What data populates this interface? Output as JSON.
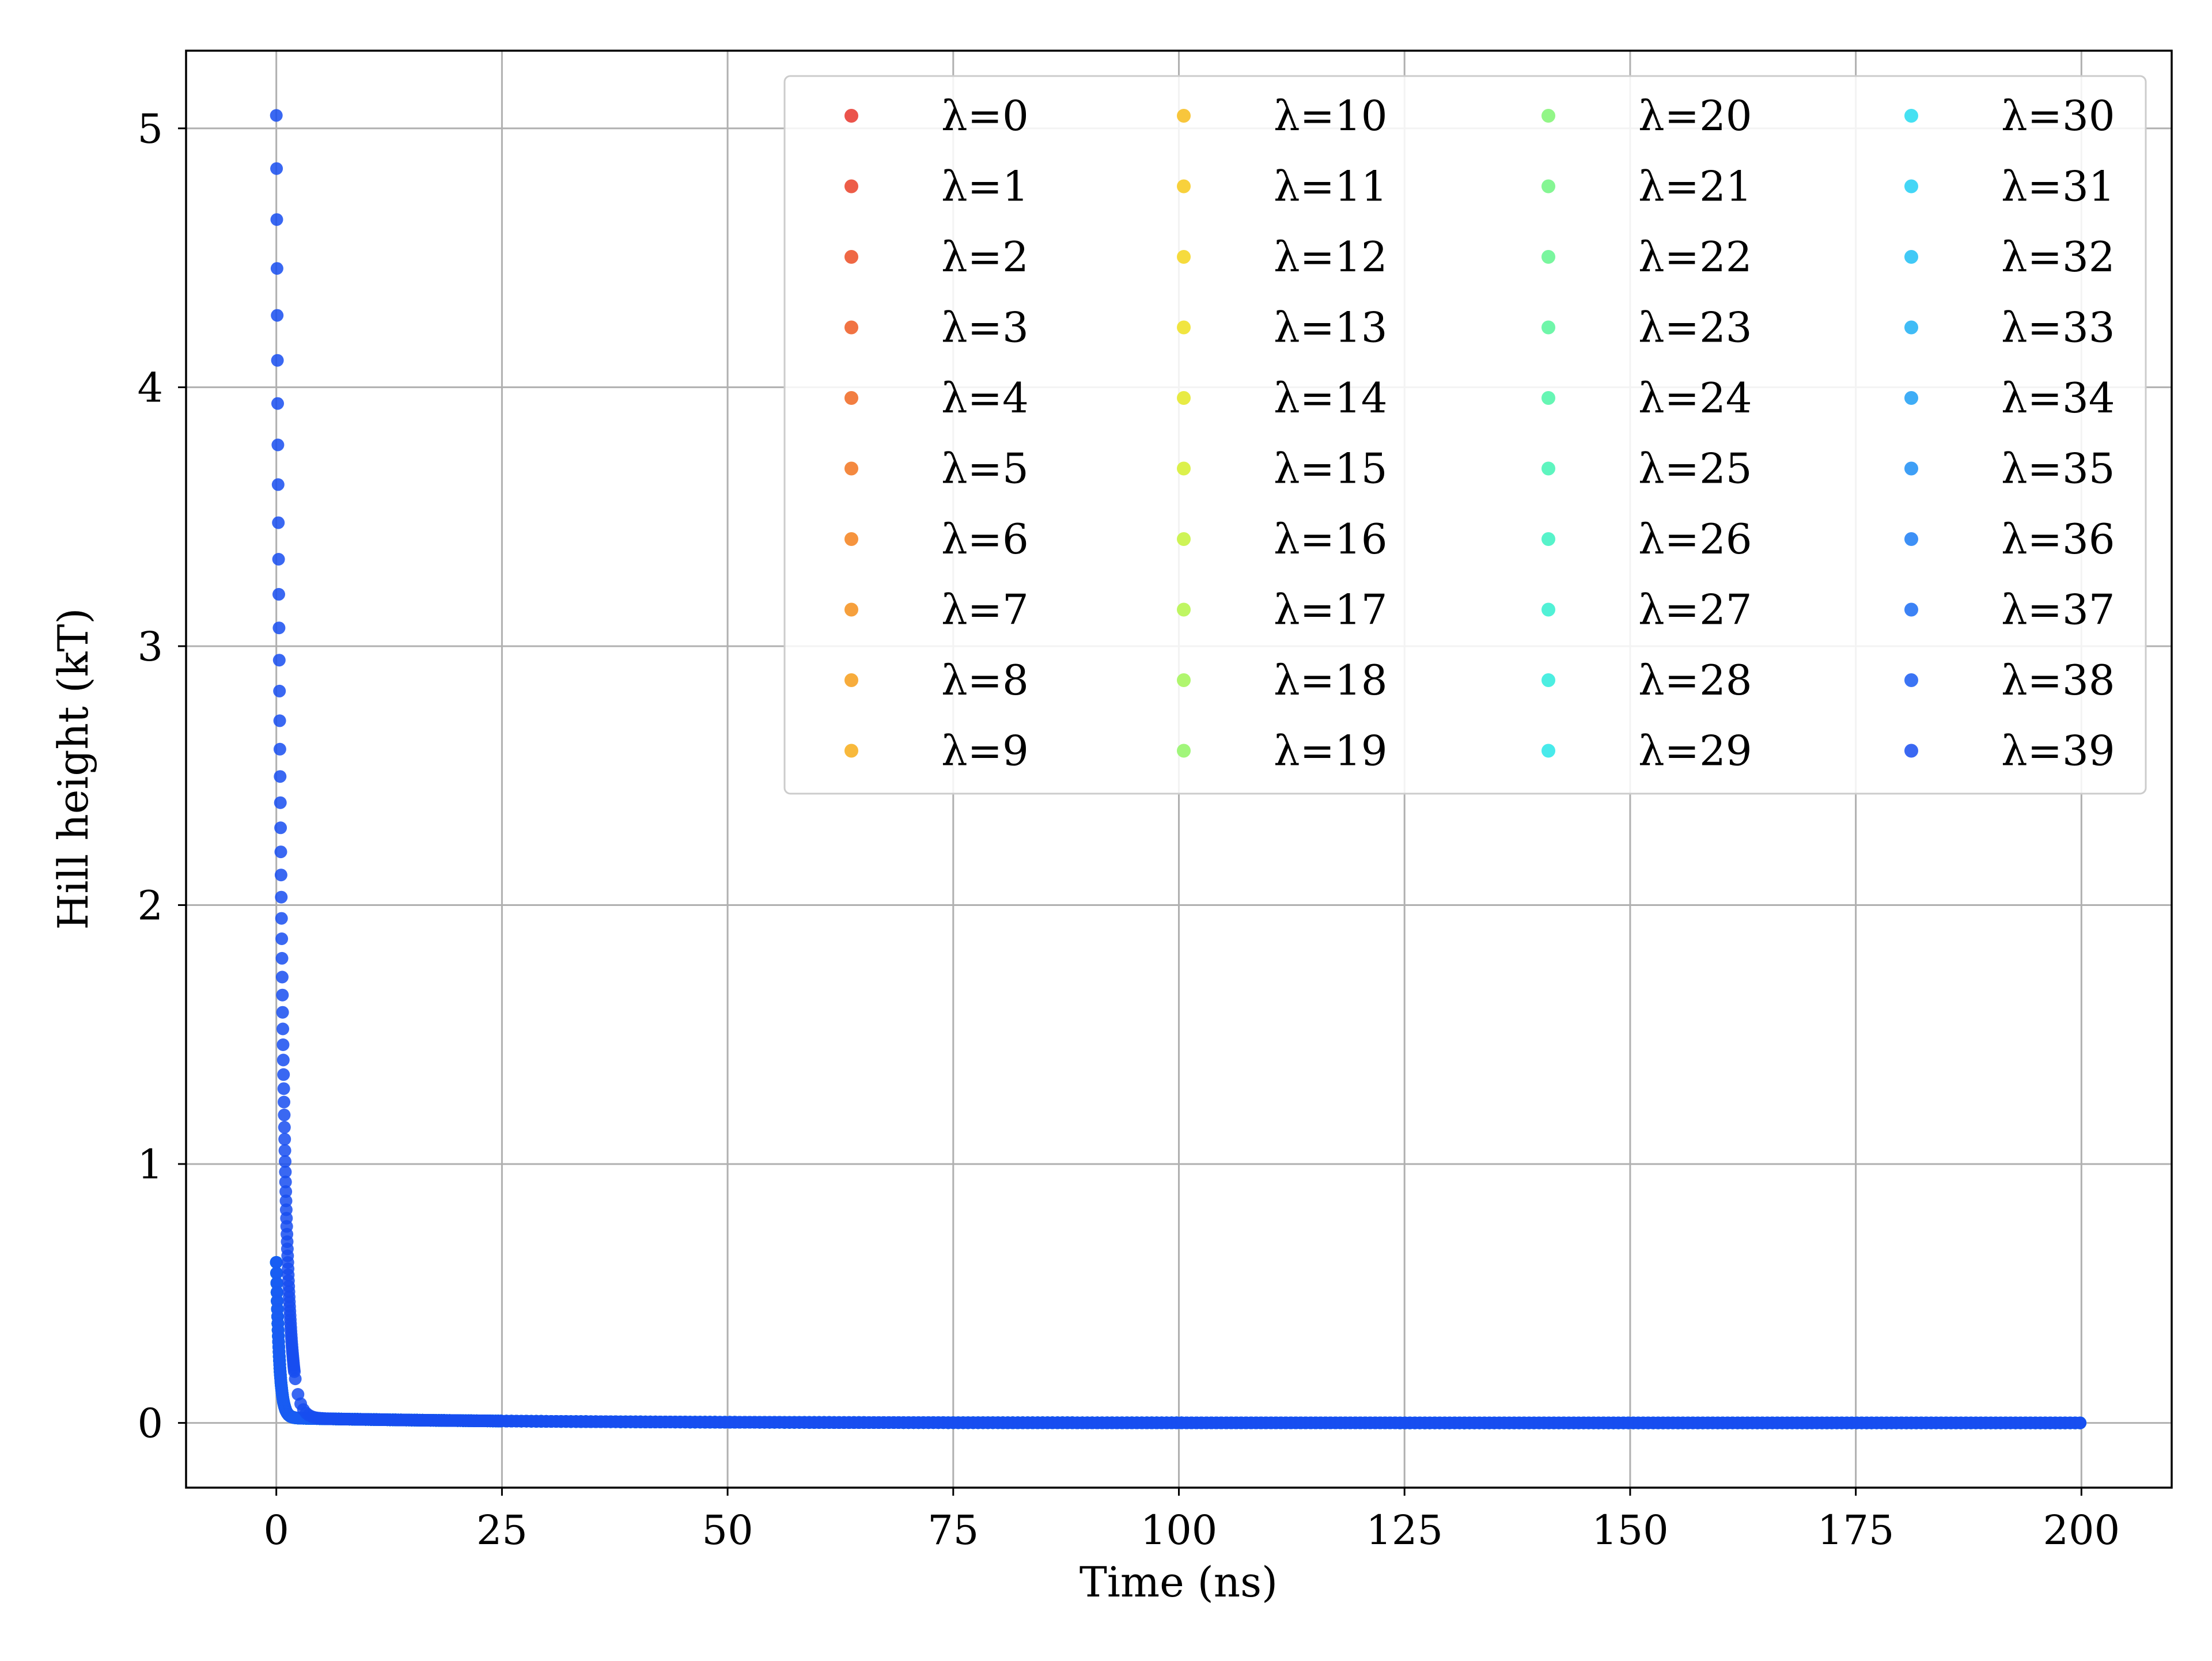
{
  "chart_data": {
    "type": "scatter",
    "title": "",
    "xlabel": "Time (ns)",
    "ylabel": "Hill height (kT)",
    "xlim": [
      -10,
      210
    ],
    "ylim": [
      -0.25,
      5.3
    ],
    "xticks": [
      0,
      25,
      50,
      75,
      100,
      125,
      150,
      175,
      200
    ],
    "yticks": [
      0,
      1,
      2,
      3,
      4,
      5
    ],
    "xtick_labels": [
      "0",
      "25",
      "50",
      "75",
      "100",
      "125",
      "150",
      "175",
      "200"
    ],
    "ytick_labels": [
      "0",
      "1",
      "2",
      "3",
      "4",
      "5"
    ],
    "grid": true,
    "legend_position": "top-right",
    "legend_columns": 4,
    "series": [
      {
        "name": "λ=0",
        "color": "#e8352b",
        "h0": 0.6,
        "tau": 0.35,
        "tmax": 200
      },
      {
        "name": "λ=1",
        "color": "#ea4128",
        "h0": 0.6,
        "tau": 0.35,
        "tmax": 200
      },
      {
        "name": "λ=2",
        "color": "#ec4e25",
        "h0": 0.6,
        "tau": 0.35,
        "tmax": 200
      },
      {
        "name": "λ=3",
        "color": "#ee5a22",
        "h0": 0.6,
        "tau": 0.35,
        "tmax": 200
      },
      {
        "name": "λ=4",
        "color": "#f06720",
        "h0": 0.6,
        "tau": 0.35,
        "tmax": 200
      },
      {
        "name": "λ=5",
        "color": "#f2741e",
        "h0": 0.6,
        "tau": 0.35,
        "tmax": 200
      },
      {
        "name": "λ=6",
        "color": "#f4811c",
        "h0": 0.6,
        "tau": 0.35,
        "tmax": 200
      },
      {
        "name": "λ=7",
        "color": "#f58f1b",
        "h0": 0.6,
        "tau": 0.35,
        "tmax": 200
      },
      {
        "name": "λ=8",
        "color": "#f69e1a",
        "h0": 0.6,
        "tau": 0.35,
        "tmax": 200
      },
      {
        "name": "λ=9",
        "color": "#f7ad1a",
        "h0": 0.6,
        "tau": 0.35,
        "tmax": 200
      },
      {
        "name": "λ=10",
        "color": "#f7bc1a",
        "h0": 0.6,
        "tau": 0.35,
        "tmax": 200
      },
      {
        "name": "λ=11",
        "color": "#f7c91a",
        "h0": 0.6,
        "tau": 0.35,
        "tmax": 200
      },
      {
        "name": "λ=12",
        "color": "#f4d51b",
        "h0": 0.6,
        "tau": 0.35,
        "tmax": 200
      },
      {
        "name": "λ=13",
        "color": "#eee01e",
        "h0": 0.6,
        "tau": 0.35,
        "tmax": 200
      },
      {
        "name": "λ=14",
        "color": "#e4e823",
        "h0": 0.6,
        "tau": 0.35,
        "tmax": 200
      },
      {
        "name": "λ=15",
        "color": "#d6ee2c",
        "h0": 0.6,
        "tau": 0.35,
        "tmax": 200
      },
      {
        "name": "λ=16",
        "color": "#c6f238",
        "h0": 0.6,
        "tau": 0.35,
        "tmax": 200
      },
      {
        "name": "λ=17",
        "color": "#b4f446",
        "h0": 0.6,
        "tau": 0.35,
        "tmax": 200
      },
      {
        "name": "λ=18",
        "color": "#a2f555",
        "h0": 0.6,
        "tau": 0.35,
        "tmax": 200
      },
      {
        "name": "λ=19",
        "color": "#90f564",
        "h0": 0.6,
        "tau": 0.35,
        "tmax": 200
      },
      {
        "name": "λ=20",
        "color": "#7ff572",
        "h0": 0.6,
        "tau": 0.35,
        "tmax": 200
      },
      {
        "name": "λ=21",
        "color": "#70f580",
        "h0": 0.6,
        "tau": 0.35,
        "tmax": 200
      },
      {
        "name": "λ=22",
        "color": "#62f58d",
        "h0": 0.6,
        "tau": 0.35,
        "tmax": 200
      },
      {
        "name": "λ=23",
        "color": "#56f59a",
        "h0": 0.6,
        "tau": 0.35,
        "tmax": 200
      },
      {
        "name": "λ=24",
        "color": "#4bf4a7",
        "h0": 0.6,
        "tau": 0.35,
        "tmax": 200
      },
      {
        "name": "λ=25",
        "color": "#42f3b4",
        "h0": 0.6,
        "tau": 0.35,
        "tmax": 200
      },
      {
        "name": "λ=26",
        "color": "#3af1c1",
        "h0": 0.6,
        "tau": 0.35,
        "tmax": 200
      },
      {
        "name": "λ=27",
        "color": "#33efcf",
        "h0": 0.6,
        "tau": 0.35,
        "tmax": 200
      },
      {
        "name": "λ=28",
        "color": "#2debdc",
        "h0": 0.6,
        "tau": 0.35,
        "tmax": 200
      },
      {
        "name": "λ=29",
        "color": "#28e6e8",
        "h0": 0.6,
        "tau": 0.35,
        "tmax": 200
      },
      {
        "name": "λ=30",
        "color": "#25dcf0",
        "h0": 0.6,
        "tau": 0.35,
        "tmax": 200
      },
      {
        "name": "λ=31",
        "color": "#22cff4",
        "h0": 0.6,
        "tau": 0.35,
        "tmax": 200
      },
      {
        "name": "λ=32",
        "color": "#20c0f5",
        "h0": 0.6,
        "tau": 0.35,
        "tmax": 200
      },
      {
        "name": "λ=33",
        "color": "#1eb0f5",
        "h0": 0.6,
        "tau": 0.35,
        "tmax": 200
      },
      {
        "name": "λ=34",
        "color": "#1d9ff5",
        "h0": 0.6,
        "tau": 0.35,
        "tmax": 200
      },
      {
        "name": "λ=35",
        "color": "#1c8ef5",
        "h0": 0.6,
        "tau": 0.35,
        "tmax": 200
      },
      {
        "name": "λ=36",
        "color": "#1b7df4",
        "h0": 0.6,
        "tau": 0.35,
        "tmax": 200
      },
      {
        "name": "λ=37",
        "color": "#1a6cf3",
        "h0": 0.6,
        "tau": 0.35,
        "tmax": 200
      },
      {
        "name": "λ=38",
        "color": "#195cf2",
        "h0": 0.6,
        "tau": 0.35,
        "tmax": 200
      },
      {
        "name": "λ=39",
        "color": "#184df0",
        "h0": 5.03,
        "tau": 0.6,
        "tmax": 200
      }
    ]
  }
}
